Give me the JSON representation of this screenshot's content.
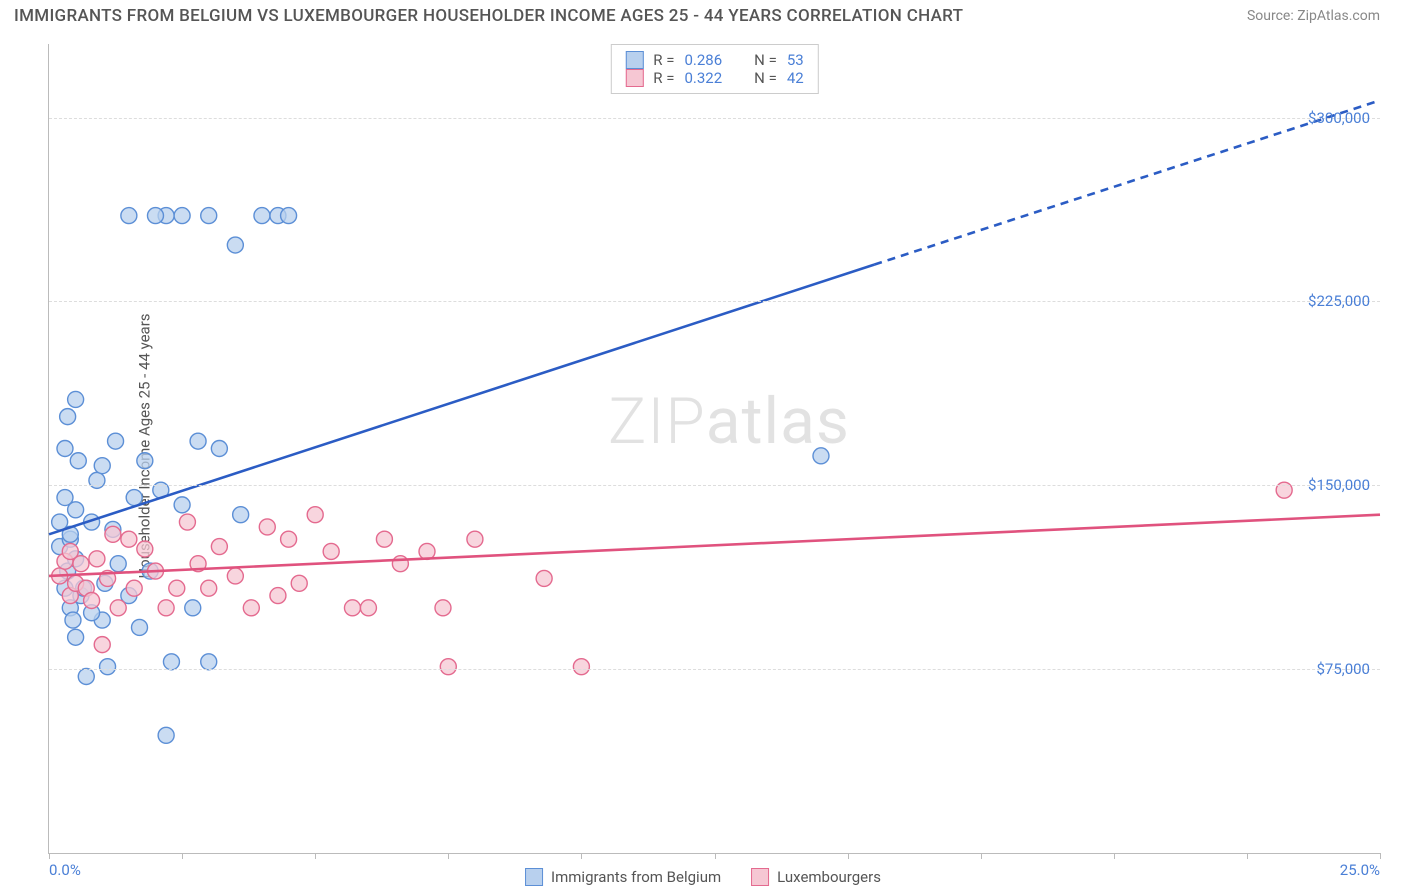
{
  "title": "IMMIGRANTS FROM BELGIUM VS LUXEMBOURGER HOUSEHOLDER INCOME AGES 25 - 44 YEARS CORRELATION CHART",
  "source": "Source: ZipAtlas.com",
  "ylabel": "Householder Income Ages 25 - 44 years",
  "watermark_a": "ZIP",
  "watermark_b": "atlas",
  "chart": {
    "type": "scatter-with-regression",
    "background_color": "#ffffff",
    "grid_color": "#dddddd",
    "axis_color": "#bbbbbb",
    "text_color": "#555555",
    "value_color": "#4a7fd6",
    "x_min_label": "0.0%",
    "x_max_label": "25.0%",
    "xlim": [
      0,
      25
    ],
    "ylim": [
      0,
      330000
    ],
    "y_gridlines": [
      75000,
      150000,
      225000,
      300000
    ],
    "y_tick_labels": [
      "$75,000",
      "$150,000",
      "$225,000",
      "$300,000"
    ],
    "x_ticks": [
      0,
      2.5,
      5,
      7.5,
      10,
      12.5,
      15,
      17.5,
      20,
      22.5,
      25
    ],
    "marker_radius": 8,
    "marker_stroke_width": 1.4,
    "trend_line_width": 2.6,
    "legend_top_lines": [
      {
        "swatch_fill": "#b8d0ee",
        "swatch_stroke": "#5c8fd6",
        "r_label": "R =",
        "r_val": "0.286",
        "n_label": "N =",
        "n_val": "53"
      },
      {
        "swatch_fill": "#f6c7d3",
        "swatch_stroke": "#e46a8f",
        "r_label": "R =",
        "r_val": "0.322",
        "n_label": "N =",
        "n_val": "42"
      }
    ],
    "legend_bottom": [
      {
        "swatch_fill": "#b8d0ee",
        "swatch_stroke": "#5c8fd6",
        "label": "Immigrants from Belgium"
      },
      {
        "swatch_fill": "#f6c7d3",
        "swatch_stroke": "#e46a8f",
        "label": "Luxembourgers"
      }
    ],
    "series": [
      {
        "name": "Immigrants from Belgium",
        "fill": "#b8d0ee",
        "stroke": "#5c8fd6",
        "opacity": 0.75,
        "trend_color": "#2b5cc4",
        "trend_from": [
          0,
          130000
        ],
        "trend_solid_to": [
          15.5,
          240000
        ],
        "trend_dashed_to": [
          25,
          307000
        ],
        "points": [
          [
            0.2,
            125000
          ],
          [
            0.2,
            135000
          ],
          [
            0.3,
            108000
          ],
          [
            0.3,
            145000
          ],
          [
            0.35,
            178000
          ],
          [
            0.35,
            115000
          ],
          [
            0.4,
            100000
          ],
          [
            0.4,
            128000
          ],
          [
            0.45,
            95000
          ],
          [
            0.5,
            140000
          ],
          [
            0.5,
            120000
          ],
          [
            0.55,
            160000
          ],
          [
            0.6,
            105000
          ],
          [
            0.65,
            108000
          ],
          [
            0.7,
            72000
          ],
          [
            0.8,
            135000
          ],
          [
            0.9,
            152000
          ],
          [
            1.0,
            95000
          ],
          [
            1.05,
            110000
          ],
          [
            1.1,
            76000
          ],
          [
            1.2,
            132000
          ],
          [
            1.25,
            168000
          ],
          [
            1.3,
            118000
          ],
          [
            1.5,
            105000
          ],
          [
            1.6,
            145000
          ],
          [
            1.7,
            92000
          ],
          [
            1.8,
            160000
          ],
          [
            1.9,
            115000
          ],
          [
            2.1,
            148000
          ],
          [
            2.2,
            48000
          ],
          [
            2.3,
            78000
          ],
          [
            2.5,
            142000
          ],
          [
            2.7,
            100000
          ],
          [
            2.8,
            168000
          ],
          [
            3.0,
            78000
          ],
          [
            3.2,
            165000
          ],
          [
            3.5,
            248000
          ],
          [
            3.6,
            138000
          ],
          [
            3.0,
            260000
          ],
          [
            2.2,
            260000
          ],
          [
            2.5,
            260000
          ],
          [
            4.0,
            260000
          ],
          [
            4.3,
            260000
          ],
          [
            4.5,
            260000
          ],
          [
            1.5,
            260000
          ],
          [
            0.5,
            185000
          ],
          [
            0.3,
            165000
          ],
          [
            1.0,
            158000
          ],
          [
            2.0,
            260000
          ],
          [
            14.5,
            162000
          ],
          [
            0.4,
            130000
          ],
          [
            0.8,
            98000
          ],
          [
            0.5,
            88000
          ]
        ]
      },
      {
        "name": "Luxembourgers",
        "fill": "#f6c7d3",
        "stroke": "#e46a8f",
        "opacity": 0.75,
        "trend_color": "#e0527e",
        "trend_from": [
          0,
          113000
        ],
        "trend_solid_to": [
          25,
          138000
        ],
        "points": [
          [
            0.2,
            113000
          ],
          [
            0.3,
            119000
          ],
          [
            0.4,
            105000
          ],
          [
            0.4,
            123000
          ],
          [
            0.5,
            110000
          ],
          [
            0.6,
            118000
          ],
          [
            0.7,
            108000
          ],
          [
            0.8,
            103000
          ],
          [
            0.9,
            120000
          ],
          [
            1.0,
            85000
          ],
          [
            1.1,
            112000
          ],
          [
            1.2,
            130000
          ],
          [
            1.3,
            100000
          ],
          [
            1.5,
            128000
          ],
          [
            1.6,
            108000
          ],
          [
            1.8,
            124000
          ],
          [
            2.0,
            115000
          ],
          [
            2.2,
            100000
          ],
          [
            2.4,
            108000
          ],
          [
            2.6,
            135000
          ],
          [
            2.8,
            118000
          ],
          [
            3.0,
            108000
          ],
          [
            3.2,
            125000
          ],
          [
            3.5,
            113000
          ],
          [
            3.8,
            100000
          ],
          [
            4.1,
            133000
          ],
          [
            4.3,
            105000
          ],
          [
            4.5,
            128000
          ],
          [
            4.7,
            110000
          ],
          [
            5.0,
            138000
          ],
          [
            5.3,
            123000
          ],
          [
            5.7,
            100000
          ],
          [
            6.0,
            100000
          ],
          [
            6.3,
            128000
          ],
          [
            6.6,
            118000
          ],
          [
            7.1,
            123000
          ],
          [
            7.4,
            100000
          ],
          [
            7.5,
            76000
          ],
          [
            8.0,
            128000
          ],
          [
            9.3,
            112000
          ],
          [
            10.0,
            76000
          ],
          [
            23.2,
            148000
          ]
        ]
      }
    ]
  }
}
